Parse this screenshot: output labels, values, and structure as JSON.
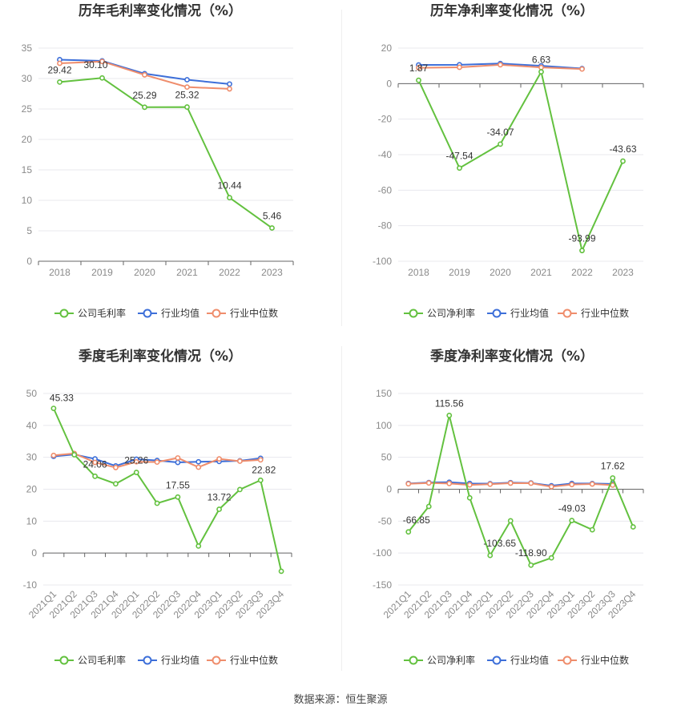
{
  "footer": {
    "source": "数据来源：恒生聚源"
  },
  "colors": {
    "company": "#63c13f",
    "avg": "#3d6fd9",
    "median": "#ef8d6c",
    "grid": "#e8e8ee",
    "axis": "#666666"
  },
  "chart_data": [
    {
      "type": "line",
      "title": "历年毛利率变化情况（%）",
      "categories": [
        "2018",
        "2019",
        "2020",
        "2021",
        "2022",
        "2023"
      ],
      "ylim": [
        0,
        35
      ],
      "yticks": [
        0,
        5,
        10,
        15,
        20,
        25,
        30,
        35
      ],
      "grid": true,
      "legend_position": "bottom",
      "series": [
        {
          "name": "公司毛利率",
          "key": "company",
          "values": [
            29.42,
            30.1,
            25.29,
            25.32,
            10.44,
            5.46
          ]
        },
        {
          "name": "行业均值",
          "key": "avg",
          "values": [
            33.1,
            32.9,
            30.8,
            29.8,
            29.1,
            null
          ]
        },
        {
          "name": "行业中位数",
          "key": "median",
          "values": [
            32.5,
            32.8,
            30.6,
            28.6,
            28.3,
            null
          ]
        }
      ],
      "data_labels": [
        "29.42",
        "30.10",
        "25.29",
        "25.32",
        "10.44",
        "5.46"
      ]
    },
    {
      "type": "line",
      "title": "历年净利率变化情况（%）",
      "categories": [
        "2018",
        "2019",
        "2020",
        "2021",
        "2022",
        "2023"
      ],
      "ylim": [
        -100,
        20
      ],
      "yticks": [
        -100,
        -80,
        -60,
        -40,
        -20,
        0,
        20
      ],
      "grid": true,
      "legend_position": "bottom",
      "series": [
        {
          "name": "公司净利率",
          "key": "company",
          "values": [
            1.87,
            -47.54,
            -34.07,
            6.63,
            -93.99,
            -43.63
          ]
        },
        {
          "name": "行业均值",
          "key": "avg",
          "values": [
            10.5,
            10.6,
            11.3,
            10.0,
            8.5,
            null
          ]
        },
        {
          "name": "行业中位数",
          "key": "median",
          "values": [
            8.9,
            9.2,
            10.6,
            9.1,
            8.2,
            null
          ]
        }
      ],
      "data_labels": [
        "1.87",
        "-47.54",
        "-34.07",
        "6.63",
        "-93.99",
        "-43.63"
      ]
    },
    {
      "type": "line",
      "title": "季度毛利率变化情况（%）",
      "categories": [
        "2021Q1",
        "2021Q2",
        "2021Q3",
        "2021Q4",
        "2022Q1",
        "2022Q2",
        "2022Q3",
        "2022Q4",
        "2023Q1",
        "2023Q2",
        "2023Q3",
        "2023Q4"
      ],
      "ylim": [
        -10,
        50
      ],
      "yticks": [
        -10,
        0,
        10,
        20,
        30,
        40,
        50
      ],
      "grid": true,
      "legend_position": "bottom",
      "series": [
        {
          "name": "公司毛利率",
          "key": "company",
          "values": [
            45.33,
            30.8,
            24.06,
            21.7,
            25.26,
            15.6,
            17.55,
            2.2,
            13.72,
            19.9,
            22.82,
            -5.7
          ]
        },
        {
          "name": "行业均值",
          "key": "avg",
          "values": [
            30.3,
            30.9,
            29.5,
            27.3,
            29.4,
            29.0,
            28.4,
            28.6,
            28.7,
            28.9,
            29.7,
            null
          ]
        },
        {
          "name": "行业中位数",
          "key": "median",
          "values": [
            30.6,
            31.2,
            28.4,
            26.8,
            28.6,
            28.5,
            29.8,
            26.9,
            29.5,
            28.8,
            29.2,
            null
          ]
        }
      ],
      "data_labels": [
        "45.33",
        "",
        "24.06",
        "",
        "25.26",
        "",
        "17.55",
        "",
        "13.72",
        "",
        "22.82",
        ""
      ]
    },
    {
      "type": "line",
      "title": "季度净利率变化情况（%）",
      "categories": [
        "2021Q1",
        "2021Q2",
        "2021Q3",
        "2021Q4",
        "2022Q1",
        "2022Q2",
        "2022Q3",
        "2022Q4",
        "2023Q1",
        "2023Q2",
        "2023Q3",
        "2023Q4"
      ],
      "ylim": [
        -150,
        150
      ],
      "yticks": [
        -150,
        -100,
        -50,
        0,
        50,
        100,
        150
      ],
      "grid": true,
      "legend_position": "bottom",
      "series": [
        {
          "name": "公司净利率",
          "key": "company",
          "values": [
            -66.85,
            -27.0,
            115.56,
            -13.5,
            -103.65,
            -49.5,
            -118.9,
            -107.5,
            -49.03,
            -63.5,
            17.62,
            -59.0
          ]
        },
        {
          "name": "行业均值",
          "key": "avg",
          "values": [
            9.0,
            10.5,
            11.0,
            9.0,
            8.8,
            10.3,
            9.8,
            5.5,
            9.0,
            8.9,
            8.2,
            null
          ]
        },
        {
          "name": "行业中位数",
          "key": "median",
          "values": [
            8.5,
            9.8,
            9.0,
            6.8,
            7.9,
            9.5,
            9.4,
            3.9,
            7.3,
            8.1,
            6.4,
            null
          ]
        }
      ],
      "data_labels": [
        "-66.85",
        "",
        "115.56",
        "",
        "-103.65",
        "",
        "-118.90",
        "",
        "-49.03",
        "",
        "17.62",
        ""
      ]
    }
  ]
}
